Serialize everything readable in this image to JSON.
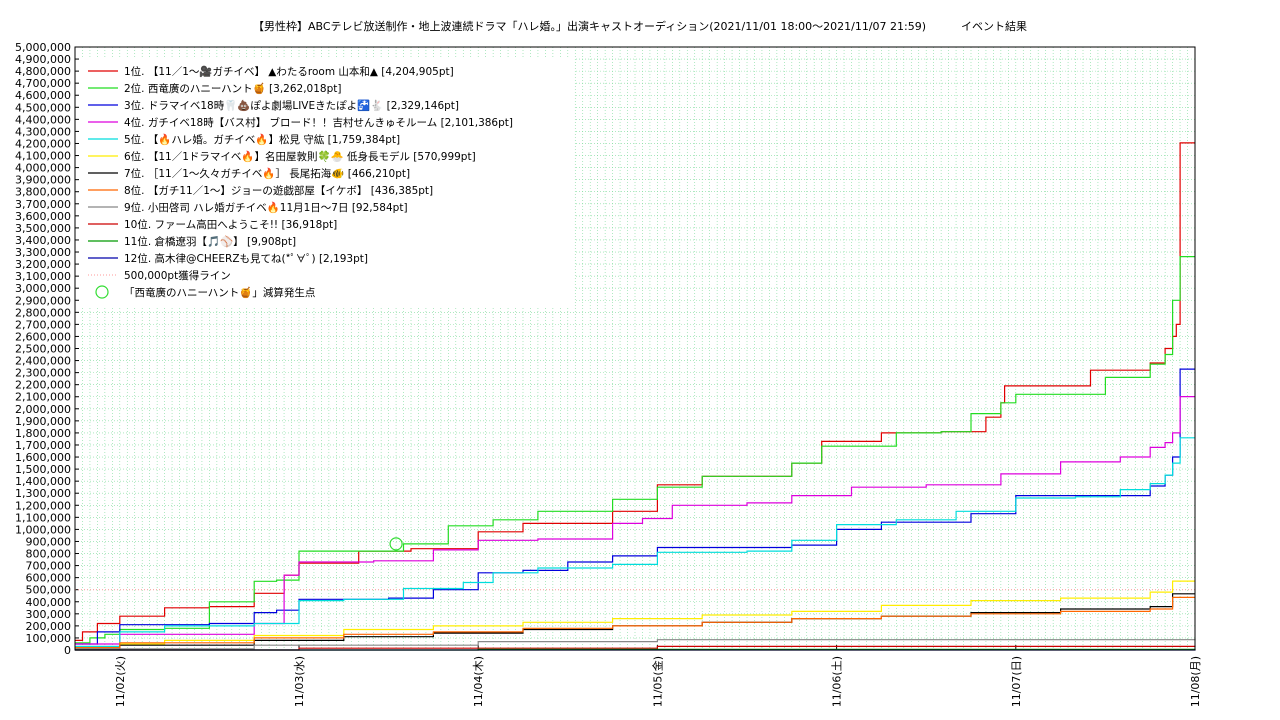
{
  "chart_data": {
    "type": "line",
    "title": "【男性枠】ABCテレビ放送制作・地上波連続ドラマ「ハレ婚。」出演キャストオーディション(2021/11/01 18:00〜2021/11/07 21:59)          イベント結果",
    "ylim": [
      0,
      5000000
    ],
    "ytick_step": 100000,
    "yticks": [
      "0",
      "100,000",
      "200,000",
      "300,000",
      "400,000",
      "500,000",
      "600,000",
      "700,000",
      "800,000",
      "900,000",
      "1,000,000",
      "1,100,000",
      "1,200,000",
      "1,300,000",
      "1,400,000",
      "1,500,000",
      "1,600,000",
      "1,700,000",
      "1,800,000",
      "1,900,000",
      "2,000,000",
      "2,100,000",
      "2,200,000",
      "2,300,000",
      "2,400,000",
      "2,500,000",
      "2,600,000",
      "2,700,000",
      "2,800,000",
      "2,900,000",
      "3,000,000",
      "3,100,000",
      "3,200,000",
      "3,300,000",
      "3,400,000",
      "3,500,000",
      "3,600,000",
      "3,700,000",
      "3,800,000",
      "3,900,000",
      "4,000,000",
      "4,100,000",
      "4,200,000",
      "4,300,000",
      "4,400,000",
      "4,500,000",
      "4,600,000",
      "4,700,000",
      "4,800,000",
      "4,900,000",
      "5,000,000"
    ],
    "xlim": [
      0,
      150
    ],
    "xtick_hours": [
      6,
      30,
      54,
      78,
      102,
      126,
      150
    ],
    "xticks": [
      "11/02(火)",
      "11/03(水)",
      "11/04(木)",
      "11/05(金)",
      "11/06(土)",
      "11/07(日)",
      "11/08(月)"
    ],
    "grid": true,
    "legend_position": "top-left",
    "threshold": {
      "label": "500,000pt獲得ライン",
      "value": 500000,
      "color": "#ff9999"
    },
    "marker": {
      "label": "「西竜廣のハニーハント🍯」減算発生点",
      "x": 43,
      "y": 880000,
      "color": "#33dd33"
    },
    "series": [
      {
        "name": "1位. 【11／1〜🎥ガチイベ】 ▲わたるroom 山本和▲ [4,204,905pt]",
        "color": "#e00000",
        "x": [
          0,
          1,
          3,
          6,
          12,
          18,
          24,
          28,
          30,
          38,
          45,
          54,
          60,
          72,
          78,
          84,
          96,
          100,
          108,
          116,
          122,
          124,
          124.5,
          126,
          136,
          142,
          144,
          146,
          147,
          147.5,
          148,
          150
        ],
        "y": [
          80000,
          150000,
          220000,
          280000,
          350000,
          360000,
          470000,
          620000,
          720000,
          820000,
          840000,
          980000,
          1050000,
          1150000,
          1370000,
          1440000,
          1550000,
          1730000,
          1800000,
          1810000,
          1930000,
          2050000,
          2190000,
          2190000,
          2320000,
          2320000,
          2380000,
          2500000,
          2600000,
          2700000,
          4204905,
          4204905
        ]
      },
      {
        "name": "2位. 西竜廣のハニーハント🍯 [3,262,018pt]",
        "color": "#22dd22",
        "x": [
          0,
          2,
          4,
          6,
          12,
          18,
          24,
          27,
          30,
          40,
          44,
          50,
          56,
          62,
          72,
          78,
          84,
          96,
          100,
          110,
          116,
          120,
          124,
          126,
          138,
          144,
          146,
          147,
          148,
          150
        ],
        "y": [
          60000,
          100000,
          130000,
          170000,
          180000,
          400000,
          570000,
          580000,
          820000,
          820000,
          880000,
          1030000,
          1080000,
          1150000,
          1250000,
          1350000,
          1440000,
          1550000,
          1690000,
          1800000,
          1810000,
          1960000,
          2050000,
          2120000,
          2260000,
          2370000,
          2450000,
          2900000,
          3262018,
          3262018
        ]
      },
      {
        "name": "3位. ドラマイベ18時🦷💩ぽよ劇場LIVEきたぽよ🚰🐇 [2,329,146pt]",
        "color": "#0000dd",
        "x": [
          0,
          3,
          6,
          18,
          24,
          27,
          30,
          36,
          42,
          48,
          54,
          60,
          66,
          72,
          78,
          90,
          96,
          102,
          108,
          114,
          120,
          126,
          138,
          144,
          146,
          147,
          148,
          150
        ],
        "y": [
          50000,
          150000,
          210000,
          220000,
          310000,
          330000,
          420000,
          420000,
          430000,
          500000,
          640000,
          660000,
          730000,
          780000,
          850000,
          850000,
          870000,
          1000000,
          1060000,
          1060000,
          1130000,
          1280000,
          1280000,
          1360000,
          1450000,
          1600000,
          2329146,
          2329146
        ]
      },
      {
        "name": "4位. ガチイベ18時【バス村】 ブロード！！吉村せんきゅそルーム [2,101,386pt]",
        "color": "#dd00dd",
        "x": [
          0,
          6,
          24,
          28,
          30,
          40,
          48,
          54,
          62,
          72,
          76,
          80,
          90,
          96,
          104,
          114,
          124,
          132,
          140,
          144,
          146,
          147,
          148,
          150
        ],
        "y": [
          50000,
          130000,
          220000,
          620000,
          730000,
          740000,
          830000,
          910000,
          920000,
          1050000,
          1090000,
          1200000,
          1220000,
          1280000,
          1350000,
          1370000,
          1460000,
          1560000,
          1600000,
          1680000,
          1720000,
          1800000,
          2101386,
          2101386
        ]
      },
      {
        "name": "5位. 【🔥ハレ婚。ガチイベ🔥】松見 守紘 [1,759,384pt]",
        "color": "#00dddd",
        "x": [
          0,
          6,
          12,
          24,
          30,
          36,
          44,
          52,
          56,
          62,
          72,
          78,
          90,
          96,
          102,
          110,
          118,
          126,
          134,
          140,
          144,
          146,
          147,
          148,
          150
        ],
        "y": [
          30000,
          150000,
          200000,
          220000,
          410000,
          420000,
          510000,
          560000,
          640000,
          680000,
          710000,
          810000,
          820000,
          910000,
          1040000,
          1080000,
          1150000,
          1260000,
          1270000,
          1330000,
          1380000,
          1450000,
          1550000,
          1759384,
          1759384
        ]
      },
      {
        "name": "6位. 【11／1ドラマイベ🔥】名田屋敦則🍀🐣 低身長モデル [570,999pt]",
        "color": "#ffee00",
        "x": [
          0,
          6,
          12,
          24,
          36,
          48,
          60,
          72,
          84,
          96,
          108,
          120,
          132,
          144,
          147,
          150
        ],
        "y": [
          20000,
          50000,
          80000,
          120000,
          170000,
          200000,
          230000,
          260000,
          290000,
          320000,
          370000,
          410000,
          430000,
          480000,
          570999,
          570999
        ]
      },
      {
        "name": "7位. ［11／1〜久々ガチイベ🔥］ 長尾拓海🐠 [466,210pt]",
        "color": "#000000",
        "x": [
          0,
          6,
          24,
          36,
          48,
          60,
          72,
          84,
          96,
          108,
          120,
          132,
          144,
          147,
          150
        ],
        "y": [
          10000,
          40000,
          80000,
          110000,
          140000,
          170000,
          200000,
          230000,
          260000,
          280000,
          310000,
          340000,
          360000,
          466210,
          466210
        ]
      },
      {
        "name": "8位. 【ガチ11／1〜】ジョーの遊戯部屋【イケボ】 [436,385pt]",
        "color": "#ff6600",
        "x": [
          0,
          6,
          24,
          36,
          48,
          60,
          72,
          84,
          96,
          108,
          120,
          132,
          144,
          147,
          150
        ],
        "y": [
          20000,
          60000,
          100000,
          130000,
          150000,
          180000,
          200000,
          230000,
          260000,
          280000,
          300000,
          320000,
          340000,
          436385,
          436385
        ]
      },
      {
        "name": "9位. 小田啓司 ハレ婚ガチイベ🔥11月1日〜7日 [92,584pt]",
        "color": "#888888",
        "x": [
          0,
          24,
          54,
          78,
          150
        ],
        "y": [
          10000,
          40000,
          70000,
          85000,
          92584
        ]
      },
      {
        "name": "10位. ファーム高田へようこそ!! [36,918pt]",
        "color": "#cc0000",
        "x": [
          0,
          30,
          78,
          150
        ],
        "y": [
          0,
          15000,
          30000,
          36918
        ]
      },
      {
        "name": "11位. 倉橋遼羽【🎵⚾】 [9,908pt]",
        "color": "#009900",
        "x": [
          0,
          54,
          150
        ],
        "y": [
          0,
          5000,
          9908
        ]
      },
      {
        "name": "12位. 高木律@CHEERZも見てね(*ﾟ∀ﾟ) [2,193pt]",
        "color": "#0000aa",
        "x": [
          0,
          150
        ],
        "y": [
          0,
          2193
        ]
      }
    ]
  }
}
